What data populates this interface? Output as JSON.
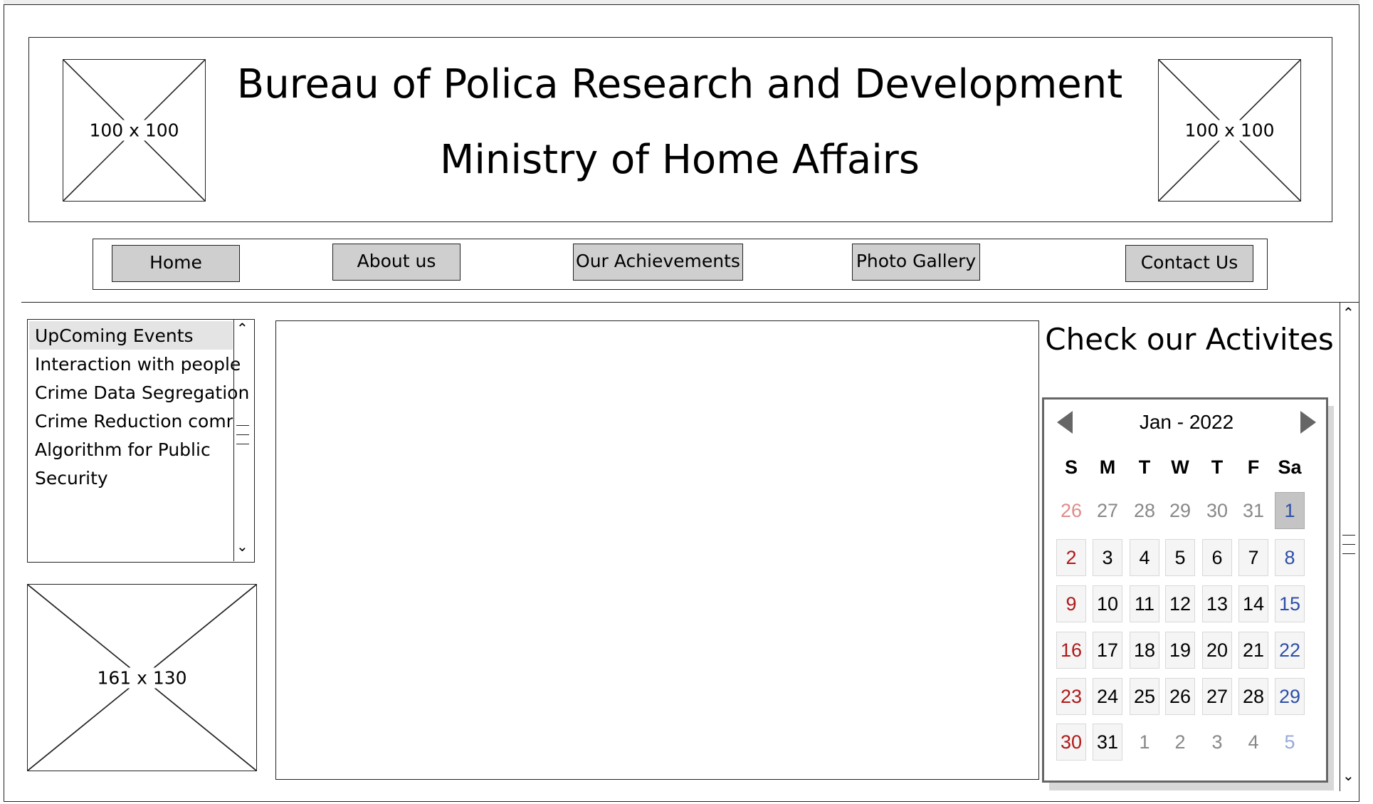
{
  "header": {
    "title": "Bureau of Polica Research and Development",
    "subtitle": "Ministry of Home Affairs",
    "logo_left_label": "100 x 100",
    "logo_right_label": "100 x 100"
  },
  "nav": {
    "items": [
      {
        "label": "Home"
      },
      {
        "label": "About us"
      },
      {
        "label": "Our Achievements"
      },
      {
        "label": "Photo Gallery"
      },
      {
        "label": "Contact Us"
      }
    ]
  },
  "events": {
    "items": [
      "UpComing Events",
      "Interaction with people",
      "Crime Data Segregation",
      "Crime Reduction committ",
      "Algorithm for Public",
      "Security"
    ]
  },
  "side_image_label": "161 x 130",
  "activities": {
    "heading": "Check our Activites"
  },
  "calendar": {
    "month_label": "Jan - 2022",
    "weekdays": [
      "S",
      "M",
      "T",
      "W",
      "T",
      "F",
      "Sa"
    ],
    "weeks": [
      [
        "26",
        "27",
        "28",
        "29",
        "30",
        "31",
        "1"
      ],
      [
        "2",
        "3",
        "4",
        "5",
        "6",
        "7",
        "8"
      ],
      [
        "9",
        "10",
        "11",
        "12",
        "13",
        "14",
        "15"
      ],
      [
        "16",
        "17",
        "18",
        "19",
        "20",
        "21",
        "22"
      ],
      [
        "23",
        "24",
        "25",
        "26",
        "27",
        "28",
        "29"
      ],
      [
        "30",
        "31",
        "1",
        "2",
        "3",
        "4",
        "5"
      ]
    ]
  }
}
